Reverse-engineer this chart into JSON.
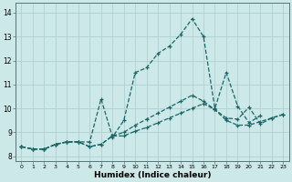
{
  "xlabel": "Humidex (Indice chaleur)",
  "background_color": "#cce8e8",
  "grid_color": "#b0d0d0",
  "line_color": "#1a6666",
  "xlim": [
    -0.5,
    23.5
  ],
  "ylim": [
    7.8,
    14.4
  ],
  "xticks": [
    0,
    1,
    2,
    3,
    4,
    5,
    6,
    7,
    8,
    9,
    10,
    11,
    12,
    13,
    14,
    15,
    16,
    17,
    18,
    19,
    20,
    21,
    22,
    23
  ],
  "yticks": [
    8,
    9,
    10,
    11,
    12,
    13,
    14
  ],
  "series": [
    {
      "x": [
        0,
        1,
        2,
        3,
        4,
        5,
        6,
        7,
        8,
        9,
        10,
        11,
        12,
        13,
        14,
        15,
        16,
        17,
        18,
        19,
        20,
        21
      ],
      "y": [
        8.4,
        8.3,
        8.3,
        8.5,
        8.6,
        8.6,
        8.6,
        10.4,
        8.8,
        9.5,
        11.5,
        11.7,
        12.3,
        12.6,
        13.1,
        13.75,
        13.0,
        10.0,
        11.5,
        10.1,
        9.4,
        9.7
      ]
    },
    {
      "x": [
        0,
        1,
        2,
        3,
        4,
        5,
        6,
        7,
        8,
        9,
        10,
        11,
        12,
        13,
        14,
        15,
        16,
        17,
        18,
        19,
        20,
        21,
        22,
        23
      ],
      "y": [
        8.4,
        8.3,
        8.3,
        8.5,
        8.6,
        8.6,
        8.4,
        8.5,
        8.85,
        9.0,
        9.3,
        9.55,
        9.8,
        10.05,
        10.3,
        10.55,
        10.3,
        9.95,
        9.6,
        9.55,
        10.05,
        9.35,
        9.6,
        9.75
      ]
    },
    {
      "x": [
        0,
        1,
        2,
        3,
        4,
        5,
        6,
        7,
        8,
        9,
        10,
        11,
        12,
        13,
        14,
        15,
        16,
        17,
        18,
        19,
        20,
        21,
        22,
        23
      ],
      "y": [
        8.4,
        8.3,
        8.3,
        8.5,
        8.6,
        8.6,
        8.4,
        8.5,
        8.85,
        8.85,
        9.05,
        9.2,
        9.4,
        9.6,
        9.8,
        10.0,
        10.2,
        9.95,
        9.5,
        9.3,
        9.3,
        9.45,
        9.6,
        9.75
      ]
    }
  ]
}
